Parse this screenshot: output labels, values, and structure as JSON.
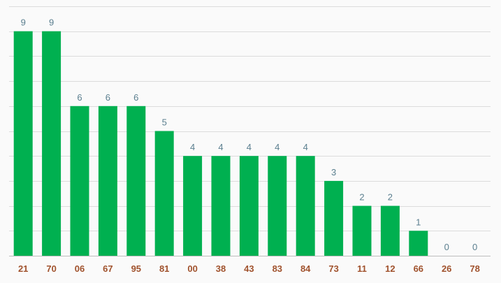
{
  "colors": {
    "bar": "#00b050",
    "value_label": "#5b7f8f",
    "category_label": "#a0522d",
    "grid": "#dcdcdc",
    "background": "#fafafa"
  },
  "chart_data": {
    "type": "bar",
    "title": "",
    "xlabel": "",
    "ylabel": "",
    "categories": [
      "21",
      "70",
      "06",
      "67",
      "95",
      "81",
      "00",
      "38",
      "43",
      "83",
      "84",
      "73",
      "11",
      "12",
      "66",
      "26",
      "78"
    ],
    "values": [
      9,
      9,
      6,
      6,
      6,
      5,
      4,
      4,
      4,
      4,
      4,
      3,
      2,
      2,
      1,
      0,
      0
    ],
    "ylim": [
      0,
      10
    ],
    "grid": true,
    "y_tick_step": 1,
    "show_value_labels": true,
    "legend": "none"
  }
}
